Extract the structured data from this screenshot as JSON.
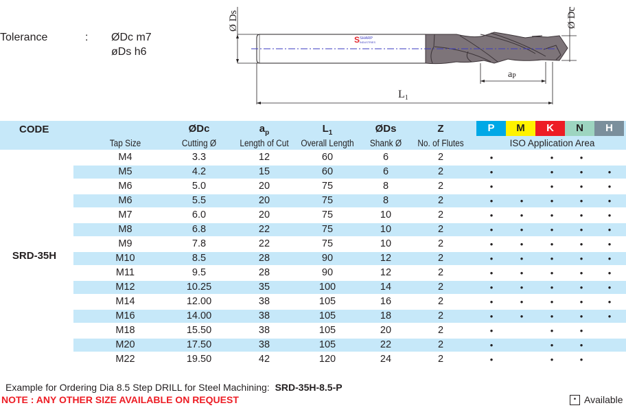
{
  "tolerance": {
    "label": "Tolerance",
    "colon": ":",
    "dc": "ØDc m7",
    "ds": "øDs  h6"
  },
  "drawing": {
    "ds_label": "Ø Ds",
    "dc_label": "Ø Dc",
    "ap_label": "a",
    "ap_sub": "P",
    "l1_label": "L",
    "l1_sub": "1",
    "logo_line1": "SHARP",
    "logo_line2": "INDUSTRIES",
    "colors": {
      "body": "#7d7479",
      "centerline": "#3a3ac0",
      "logo": "#e2262e"
    }
  },
  "table": {
    "header": {
      "code": "CODE",
      "tap_size": "Tap Size",
      "dc_top": "ØDc",
      "dc_sub": "Cutting Ø",
      "ap_top": "a",
      "ap_top_sub": "p",
      "ap_sub": "Length of Cut",
      "l1_top": "L",
      "l1_top_sub": "1",
      "l1_sub": "Overall Length",
      "ds_top": "ØDs",
      "ds_sub": "Shank Ø",
      "z_top": "Z",
      "z_sub": "No. of Flutes",
      "iso_area": "ISO Application Area",
      "iso": [
        {
          "label": "P",
          "bg": "#00a8e6",
          "fg": "#ffffff"
        },
        {
          "label": "M",
          "bg": "#fff200",
          "fg": "#231f20"
        },
        {
          "label": "K",
          "bg": "#ed1c24",
          "fg": "#ffffff"
        },
        {
          "label": "N",
          "bg": "#9dd5c0",
          "fg": "#231f20"
        },
        {
          "label": "H",
          "bg": "#7b8f9c",
          "fg": "#ffffff"
        }
      ]
    },
    "code": "SRD-35H",
    "bullet": "•",
    "rows": [
      {
        "tap": "M4",
        "dc": "3.3",
        "ap": "12",
        "l1": "60",
        "ds": "6",
        "z": "2",
        "iso": [
          "•",
          "",
          "•",
          "•",
          ""
        ]
      },
      {
        "tap": "M5",
        "dc": "4.2",
        "ap": "15",
        "l1": "60",
        "ds": "6",
        "z": "2",
        "iso": [
          "•",
          "",
          "•",
          "•",
          "•"
        ]
      },
      {
        "tap": "M6",
        "dc": "5.0",
        "ap": "20",
        "l1": "75",
        "ds": "8",
        "z": "2",
        "iso": [
          "•",
          "",
          "•",
          "•",
          "•"
        ]
      },
      {
        "tap": "M6",
        "dc": "5.5",
        "ap": "20",
        "l1": "75",
        "ds": "8",
        "z": "2",
        "iso": [
          "•",
          "•",
          "•",
          "•",
          "•"
        ]
      },
      {
        "tap": "M7",
        "dc": "6.0",
        "ap": "20",
        "l1": "75",
        "ds": "10",
        "z": "2",
        "iso": [
          "•",
          "•",
          "•",
          "•",
          "•"
        ]
      },
      {
        "tap": "M8",
        "dc": "6.8",
        "ap": "22",
        "l1": "75",
        "ds": "10",
        "z": "2",
        "iso": [
          "•",
          "•",
          "•",
          "•",
          "•"
        ]
      },
      {
        "tap": "M9",
        "dc": "7.8",
        "ap": "22",
        "l1": "75",
        "ds": "10",
        "z": "2",
        "iso": [
          "•",
          "•",
          "•",
          "•",
          "•"
        ]
      },
      {
        "tap": "M10",
        "dc": "8.5",
        "ap": "28",
        "l1": "90",
        "ds": "12",
        "z": "2",
        "iso": [
          "•",
          "•",
          "•",
          "•",
          "•"
        ]
      },
      {
        "tap": "M11",
        "dc": "9.5",
        "ap": "28",
        "l1": "90",
        "ds": "12",
        "z": "2",
        "iso": [
          "•",
          "•",
          "•",
          "•",
          "•"
        ]
      },
      {
        "tap": "M12",
        "dc": "10.25",
        "ap": "35",
        "l1": "100",
        "ds": "14",
        "z": "2",
        "iso": [
          "•",
          "•",
          "•",
          "•",
          "•"
        ]
      },
      {
        "tap": "M14",
        "dc": "12.00",
        "ap": "38",
        "l1": "105",
        "ds": "16",
        "z": "2",
        "iso": [
          "•",
          "•",
          "•",
          "•",
          "•"
        ]
      },
      {
        "tap": "M16",
        "dc": "14.00",
        "ap": "38",
        "l1": "105",
        "ds": "18",
        "z": "2",
        "iso": [
          "•",
          "•",
          "•",
          "•",
          "•"
        ]
      },
      {
        "tap": "M18",
        "dc": "15.50",
        "ap": "38",
        "l1": "105",
        "ds": "20",
        "z": "2",
        "iso": [
          "•",
          "",
          "•",
          "•",
          ""
        ]
      },
      {
        "tap": "M20",
        "dc": "17.50",
        "ap": "38",
        "l1": "105",
        "ds": "22",
        "z": "2",
        "iso": [
          "•",
          "",
          "•",
          "•",
          ""
        ]
      },
      {
        "tap": "M22",
        "dc": "19.50",
        "ap": "42",
        "l1": "120",
        "ds": "24",
        "z": "2",
        "iso": [
          "•",
          "",
          "•",
          "•",
          ""
        ]
      }
    ]
  },
  "footer": {
    "example_text": "Example for Ordering Dia 8.5 Step DRILL for Steel Machining:",
    "example_code": "SRD-35H-8.5-P",
    "note": "NOTE : ANY OTHER SIZE AVAILABLE ON REQUEST",
    "legend_symbol": "•",
    "legend_label": "Available"
  },
  "colors": {
    "stripe": "#c6e8f9",
    "header_bg": "#c6e8f9",
    "note_red": "#ed1c24"
  }
}
